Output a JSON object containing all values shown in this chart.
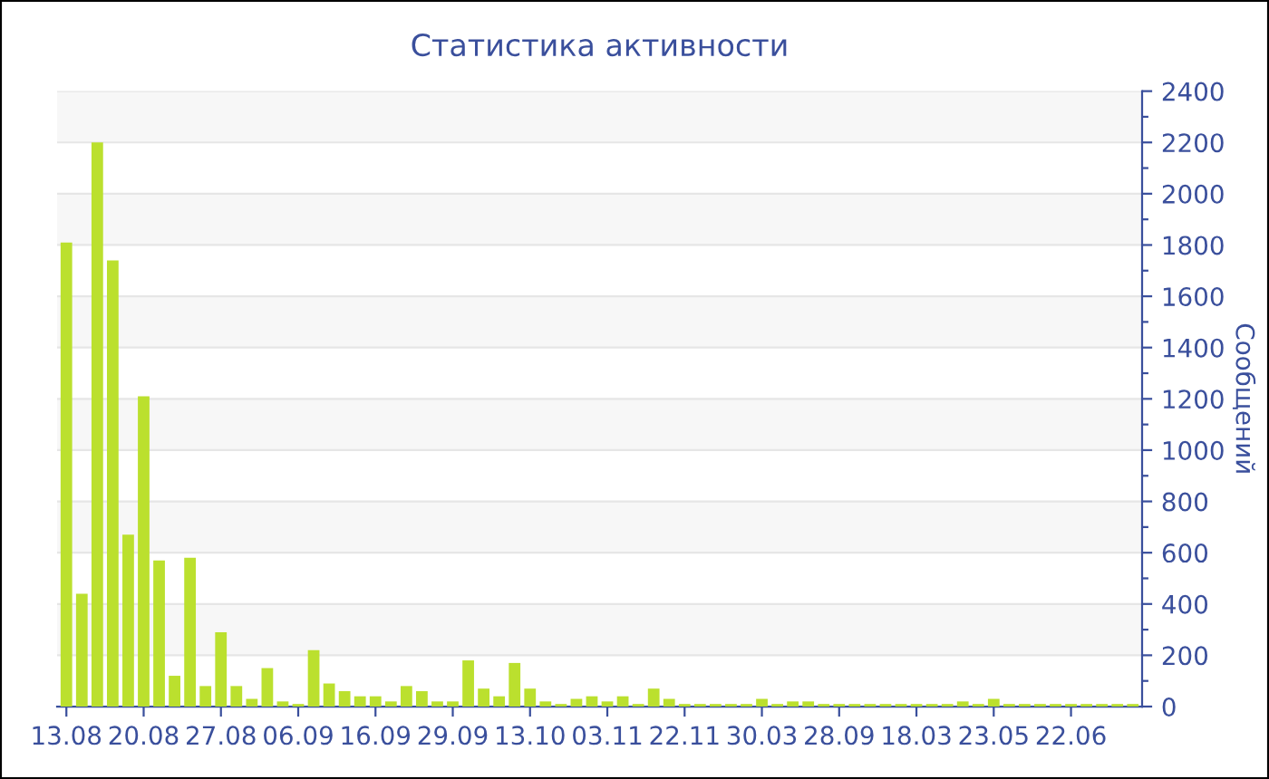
{
  "chart_data": {
    "type": "bar",
    "title": "Статистика активности",
    "ylabel": "Сообщений",
    "categories": [
      "13.08",
      null,
      null,
      null,
      null,
      "20.08",
      null,
      null,
      null,
      null,
      "27.08",
      null,
      null,
      null,
      null,
      "06.09",
      null,
      null,
      null,
      null,
      "16.09",
      null,
      null,
      null,
      null,
      "29.09",
      null,
      null,
      null,
      null,
      "13.10",
      null,
      null,
      null,
      null,
      "03.11",
      null,
      null,
      null,
      null,
      "22.11",
      null,
      null,
      null,
      null,
      "30.03",
      null,
      null,
      null,
      null,
      "28.09",
      null,
      null,
      null,
      null,
      "18.03",
      null,
      null,
      null,
      null,
      "23.05",
      null,
      null,
      null,
      null,
      "22.06",
      null,
      null,
      null,
      null
    ],
    "values": [
      1810,
      440,
      2200,
      1740,
      670,
      1210,
      570,
      120,
      580,
      80,
      290,
      80,
      30,
      150,
      20,
      10,
      220,
      90,
      60,
      40,
      40,
      20,
      80,
      60,
      20,
      20,
      180,
      70,
      40,
      170,
      70,
      20,
      10,
      30,
      40,
      20,
      40,
      10,
      70,
      30,
      10,
      10,
      10,
      10,
      10,
      30,
      10,
      20,
      20,
      10,
      10,
      10,
      10,
      10,
      10,
      10,
      10,
      10,
      20,
      10,
      30,
      10,
      10,
      10,
      10,
      10,
      10,
      10,
      10,
      10
    ],
    "color": "#bbe02e",
    "ylim": [
      0,
      2400
    ],
    "yticks": [
      0,
      {
        "value": 100,
        "label": null
      },
      200,
      {
        "value": 300,
        "label": null
      },
      400,
      {
        "value": 500,
        "label": null
      },
      600,
      {
        "value": 700,
        "label": null
      },
      800,
      {
        "value": 900,
        "label": null
      },
      1000,
      {
        "value": 1100,
        "label": null
      },
      1200,
      {
        "value": 1300,
        "label": null
      },
      1400,
      {
        "value": 1500,
        "label": null
      },
      1600,
      {
        "value": 1700,
        "label": null
      },
      1800,
      {
        "value": 1900,
        "label": null
      },
      2000,
      {
        "value": 2100,
        "label": null
      },
      2200,
      {
        "value": 2300,
        "label": null
      },
      2400
    ],
    "grid": "y"
  }
}
